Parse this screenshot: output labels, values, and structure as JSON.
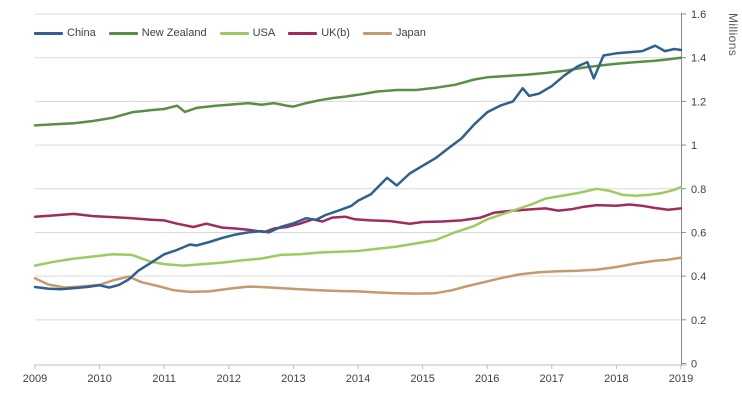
{
  "chart_data": {
    "type": "line",
    "title": "",
    "xlabel": "",
    "ylabel": "Millions",
    "ylim": [
      0,
      1.6
    ],
    "xlim": [
      2009,
      2019
    ],
    "grid": "horizontal",
    "legend_position": "top-left",
    "y_ticks": [
      "0",
      "0.2",
      "0.4",
      "0.6",
      "0.8",
      "1",
      "1.2",
      "1.4",
      "1.6"
    ],
    "x_ticks": [
      "2009",
      "2010",
      "2011",
      "2012",
      "2013",
      "2014",
      "2015",
      "2016",
      "2017",
      "2018",
      "2019"
    ],
    "series": [
      {
        "name": "China",
        "color": "#2e6091",
        "points": [
          [
            2009.0,
            0.35
          ],
          [
            2009.2,
            0.343
          ],
          [
            2009.4,
            0.34
          ],
          [
            2009.6,
            0.345
          ],
          [
            2009.8,
            0.35
          ],
          [
            2010.0,
            0.358
          ],
          [
            2010.15,
            0.348
          ],
          [
            2010.3,
            0.36
          ],
          [
            2010.45,
            0.385
          ],
          [
            2010.6,
            0.425
          ],
          [
            2010.8,
            0.462
          ],
          [
            2011.0,
            0.5
          ],
          [
            2011.2,
            0.52
          ],
          [
            2011.4,
            0.545
          ],
          [
            2011.5,
            0.54
          ],
          [
            2011.7,
            0.556
          ],
          [
            2011.9,
            0.575
          ],
          [
            2012.1,
            0.59
          ],
          [
            2012.3,
            0.6
          ],
          [
            2012.5,
            0.606
          ],
          [
            2012.62,
            0.6
          ],
          [
            2012.8,
            0.625
          ],
          [
            2013.0,
            0.642
          ],
          [
            2013.2,
            0.665
          ],
          [
            2013.35,
            0.658
          ],
          [
            2013.5,
            0.68
          ],
          [
            2013.7,
            0.7
          ],
          [
            2013.9,
            0.722
          ],
          [
            2014.0,
            0.745
          ],
          [
            2014.2,
            0.775
          ],
          [
            2014.45,
            0.85
          ],
          [
            2014.6,
            0.815
          ],
          [
            2014.8,
            0.87
          ],
          [
            2015.0,
            0.905
          ],
          [
            2015.2,
            0.94
          ],
          [
            2015.4,
            0.985
          ],
          [
            2015.6,
            1.03
          ],
          [
            2015.8,
            1.095
          ],
          [
            2016.0,
            1.15
          ],
          [
            2016.2,
            1.18
          ],
          [
            2016.4,
            1.2
          ],
          [
            2016.55,
            1.26
          ],
          [
            2016.65,
            1.225
          ],
          [
            2016.8,
            1.235
          ],
          [
            2017.0,
            1.27
          ],
          [
            2017.2,
            1.32
          ],
          [
            2017.4,
            1.36
          ],
          [
            2017.55,
            1.38
          ],
          [
            2017.65,
            1.305
          ],
          [
            2017.8,
            1.41
          ],
          [
            2018.0,
            1.42
          ],
          [
            2018.2,
            1.425
          ],
          [
            2018.4,
            1.43
          ],
          [
            2018.6,
            1.455
          ],
          [
            2018.75,
            1.43
          ],
          [
            2018.9,
            1.44
          ],
          [
            2019.0,
            1.435
          ]
        ]
      },
      {
        "name": "New Zealand",
        "color": "#579044",
        "points": [
          [
            2009.0,
            1.09
          ],
          [
            2009.3,
            1.095
          ],
          [
            2009.6,
            1.1
          ],
          [
            2009.9,
            1.11
          ],
          [
            2010.2,
            1.125
          ],
          [
            2010.5,
            1.15
          ],
          [
            2010.8,
            1.16
          ],
          [
            2011.0,
            1.165
          ],
          [
            2011.2,
            1.18
          ],
          [
            2011.32,
            1.152
          ],
          [
            2011.5,
            1.17
          ],
          [
            2011.8,
            1.18
          ],
          [
            2012.0,
            1.185
          ],
          [
            2012.3,
            1.192
          ],
          [
            2012.5,
            1.185
          ],
          [
            2012.7,
            1.192
          ],
          [
            2012.9,
            1.18
          ],
          [
            2013.0,
            1.176
          ],
          [
            2013.2,
            1.192
          ],
          [
            2013.4,
            1.205
          ],
          [
            2013.6,
            1.215
          ],
          [
            2013.8,
            1.222
          ],
          [
            2014.0,
            1.23
          ],
          [
            2014.3,
            1.245
          ],
          [
            2014.6,
            1.252
          ],
          [
            2014.9,
            1.252
          ],
          [
            2015.2,
            1.262
          ],
          [
            2015.5,
            1.276
          ],
          [
            2015.8,
            1.3
          ],
          [
            2016.0,
            1.31
          ],
          [
            2016.3,
            1.316
          ],
          [
            2016.6,
            1.322
          ],
          [
            2016.9,
            1.33
          ],
          [
            2017.2,
            1.34
          ],
          [
            2017.5,
            1.355
          ],
          [
            2017.8,
            1.366
          ],
          [
            2018.0,
            1.372
          ],
          [
            2018.3,
            1.38
          ],
          [
            2018.6,
            1.386
          ],
          [
            2018.8,
            1.392
          ],
          [
            2019.0,
            1.4
          ]
        ]
      },
      {
        "name": "USA",
        "color": "#9ccb5f",
        "points": [
          [
            2009.0,
            0.448
          ],
          [
            2009.3,
            0.466
          ],
          [
            2009.6,
            0.48
          ],
          [
            2009.9,
            0.49
          ],
          [
            2010.2,
            0.5
          ],
          [
            2010.5,
            0.497
          ],
          [
            2010.8,
            0.465
          ],
          [
            2011.0,
            0.455
          ],
          [
            2011.3,
            0.448
          ],
          [
            2011.6,
            0.455
          ],
          [
            2011.9,
            0.462
          ],
          [
            2012.2,
            0.472
          ],
          [
            2012.5,
            0.48
          ],
          [
            2012.8,
            0.497
          ],
          [
            2013.1,
            0.5
          ],
          [
            2013.4,
            0.508
          ],
          [
            2013.7,
            0.512
          ],
          [
            2014.0,
            0.515
          ],
          [
            2014.3,
            0.525
          ],
          [
            2014.6,
            0.535
          ],
          [
            2014.9,
            0.55
          ],
          [
            2015.2,
            0.565
          ],
          [
            2015.5,
            0.6
          ],
          [
            2015.8,
            0.63
          ],
          [
            2016.0,
            0.66
          ],
          [
            2016.2,
            0.68
          ],
          [
            2016.45,
            0.705
          ],
          [
            2016.7,
            0.73
          ],
          [
            2016.9,
            0.755
          ],
          [
            2017.1,
            0.765
          ],
          [
            2017.4,
            0.78
          ],
          [
            2017.7,
            0.8
          ],
          [
            2017.9,
            0.79
          ],
          [
            2018.1,
            0.772
          ],
          [
            2018.3,
            0.768
          ],
          [
            2018.5,
            0.772
          ],
          [
            2018.7,
            0.78
          ],
          [
            2018.9,
            0.795
          ],
          [
            2019.0,
            0.808
          ]
        ]
      },
      {
        "name": "UK(b)",
        "color": "#a02b5c",
        "points": [
          [
            2009.0,
            0.672
          ],
          [
            2009.3,
            0.678
          ],
          [
            2009.6,
            0.685
          ],
          [
            2009.9,
            0.675
          ],
          [
            2010.2,
            0.67
          ],
          [
            2010.5,
            0.665
          ],
          [
            2010.8,
            0.658
          ],
          [
            2011.0,
            0.655
          ],
          [
            2011.2,
            0.64
          ],
          [
            2011.45,
            0.625
          ],
          [
            2011.65,
            0.64
          ],
          [
            2011.9,
            0.622
          ],
          [
            2012.1,
            0.618
          ],
          [
            2012.3,
            0.612
          ],
          [
            2012.55,
            0.602
          ],
          [
            2012.7,
            0.618
          ],
          [
            2012.9,
            0.625
          ],
          [
            2013.1,
            0.64
          ],
          [
            2013.3,
            0.66
          ],
          [
            2013.45,
            0.65
          ],
          [
            2013.6,
            0.668
          ],
          [
            2013.8,
            0.672
          ],
          [
            2013.95,
            0.66
          ],
          [
            2014.2,
            0.655
          ],
          [
            2014.5,
            0.652
          ],
          [
            2014.8,
            0.64
          ],
          [
            2015.0,
            0.648
          ],
          [
            2015.3,
            0.65
          ],
          [
            2015.6,
            0.655
          ],
          [
            2015.9,
            0.668
          ],
          [
            2016.1,
            0.69
          ],
          [
            2016.4,
            0.7
          ],
          [
            2016.7,
            0.706
          ],
          [
            2016.9,
            0.71
          ],
          [
            2017.1,
            0.7
          ],
          [
            2017.3,
            0.706
          ],
          [
            2017.5,
            0.718
          ],
          [
            2017.7,
            0.725
          ],
          [
            2018.0,
            0.722
          ],
          [
            2018.2,
            0.728
          ],
          [
            2018.4,
            0.722
          ],
          [
            2018.6,
            0.712
          ],
          [
            2018.8,
            0.704
          ],
          [
            2019.0,
            0.71
          ]
        ]
      },
      {
        "name": "Japan",
        "color": "#c69a6a",
        "points": [
          [
            2009.0,
            0.39
          ],
          [
            2009.2,
            0.362
          ],
          [
            2009.45,
            0.348
          ],
          [
            2009.7,
            0.352
          ],
          [
            2010.0,
            0.36
          ],
          [
            2010.2,
            0.38
          ],
          [
            2010.45,
            0.398
          ],
          [
            2010.65,
            0.372
          ],
          [
            2010.9,
            0.355
          ],
          [
            2011.15,
            0.335
          ],
          [
            2011.4,
            0.328
          ],
          [
            2011.7,
            0.33
          ],
          [
            2012.0,
            0.342
          ],
          [
            2012.3,
            0.352
          ],
          [
            2012.5,
            0.35
          ],
          [
            2012.8,
            0.345
          ],
          [
            2013.1,
            0.34
          ],
          [
            2013.4,
            0.335
          ],
          [
            2013.7,
            0.332
          ],
          [
            2014.0,
            0.33
          ],
          [
            2014.3,
            0.325
          ],
          [
            2014.6,
            0.322
          ],
          [
            2014.9,
            0.32
          ],
          [
            2015.2,
            0.322
          ],
          [
            2015.45,
            0.335
          ],
          [
            2015.7,
            0.355
          ],
          [
            2015.95,
            0.372
          ],
          [
            2016.2,
            0.39
          ],
          [
            2016.5,
            0.408
          ],
          [
            2016.8,
            0.418
          ],
          [
            2017.1,
            0.422
          ],
          [
            2017.4,
            0.425
          ],
          [
            2017.7,
            0.43
          ],
          [
            2018.0,
            0.442
          ],
          [
            2018.3,
            0.458
          ],
          [
            2018.6,
            0.47
          ],
          [
            2018.8,
            0.475
          ],
          [
            2019.0,
            0.485
          ]
        ]
      }
    ]
  },
  "colors": {
    "background": "#ffffff",
    "gridline": "#d9d9d9",
    "x_axis_line": "#bfbfbf",
    "y_axis_line": "#898989",
    "tick_label": "#404040",
    "axis_title": "#595959"
  }
}
